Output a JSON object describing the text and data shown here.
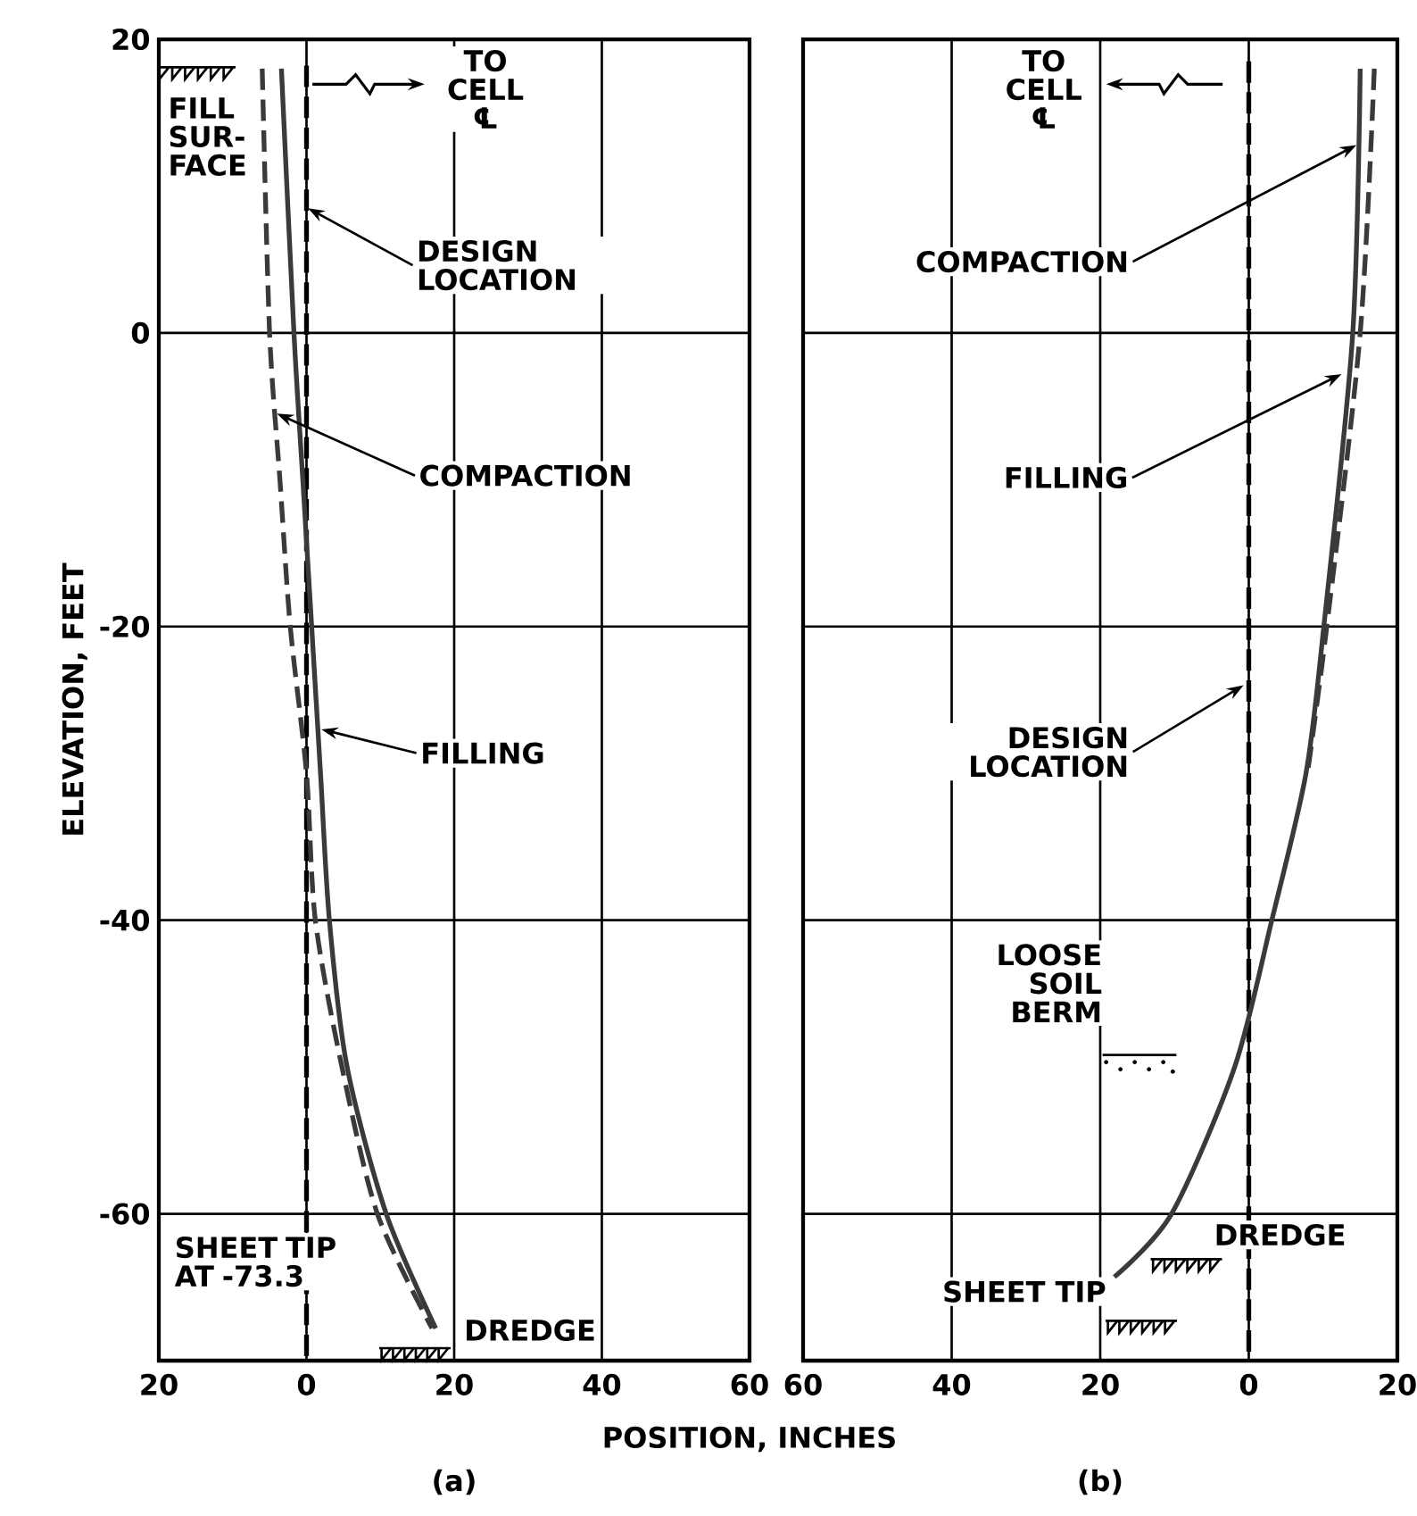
{
  "chart_data": [
    {
      "type": "line",
      "title": "(a)",
      "xlabel": "POSITION, INCHES",
      "ylabel": "ELEVATION, FEET",
      "xlim": [
        -20,
        60
      ],
      "xticks": [
        {
          "value": -20,
          "label": "20"
        },
        0,
        20,
        40,
        60
      ],
      "ylim": [
        -70,
        20
      ],
      "yticks": [
        -60,
        -40,
        -20,
        0,
        20
      ],
      "grid": true,
      "series": [
        {
          "color": "#000000",
          "line_style": "dashed",
          "x": [
            0,
            0
          ],
          "values": [
            18.2,
            -70
          ]
        },
        {
          "color": "#3a3a3a",
          "line_style": "dashed",
          "x": [
            -6,
            -5,
            -3.6,
            -2.2,
            0,
            1.2,
            4.8,
            9.6,
            17
          ],
          "values": [
            18,
            0,
            -10,
            -20,
            -30,
            -40,
            -50,
            -60,
            -67.8
          ]
        },
        {
          "color": "#3a3a3a",
          "line_style": "solid",
          "x": [
            -3.4,
            -1.7,
            -0.5,
            0.7,
            1.9,
            3.1,
            5.5,
            10.8,
            17.5
          ],
          "values": [
            18,
            0,
            -10,
            -20,
            -30,
            -40,
            -50,
            -60,
            -67.8
          ]
        }
      ],
      "annotations": [
        "TO CELL ℄",
        "FILL SUR-FACE",
        {
          "text": "DESIGN LOCATION",
          "x": 0.2,
          "y": 8.5
        },
        {
          "text": "COMPACTION",
          "x": -4,
          "y": -5.5
        },
        {
          "text": "FILLING",
          "x": 2,
          "y": -27
        },
        "SHEET TIP AT -73.3",
        "DREDGE"
      ]
    },
    {
      "type": "line",
      "title": "(b)",
      "xlim": [
        60,
        -20
      ],
      "xticks": [
        60,
        40,
        20,
        0,
        {
          "value": -20,
          "label": "20"
        }
      ],
      "ylim": [
        -70,
        20
      ],
      "yticks": [
        -60,
        -40,
        -20,
        0,
        20
      ],
      "grid": true,
      "tick_labels": "x",
      "series": [
        {
          "color": "#000000",
          "line_style": "dashed",
          "x": [
            0,
            0
          ],
          "values": [
            18.5,
            -70
          ]
        },
        {
          "color": "#3a3a3a",
          "line_style": "dashed",
          "x": [
            -16.9,
            -15,
            -10.5,
            -7.9
          ],
          "values": [
            18,
            0,
            -20,
            -30
          ]
        },
        {
          "color": "#3a3a3a",
          "line_style": "solid",
          "x": [
            -15,
            -14,
            -10.1,
            -7.7,
            -3.1,
            1.9,
            10.4,
            18.1
          ],
          "values": [
            18,
            0,
            -20,
            -30,
            -40,
            -50,
            -60,
            -64.3
          ]
        }
      ],
      "annotations": [
        "TO CELL ℄",
        {
          "text": "COMPACTION",
          "x": -14.5,
          "y": 12.8
        },
        {
          "text": "FILLING",
          "x": -12.5,
          "y": -2.8
        },
        {
          "text": "DESIGN LOCATION",
          "x": 0.7,
          "y": -24
        },
        "LOOSE SOIL BERM",
        "DREDGE",
        "SHEET TIP"
      ]
    }
  ]
}
